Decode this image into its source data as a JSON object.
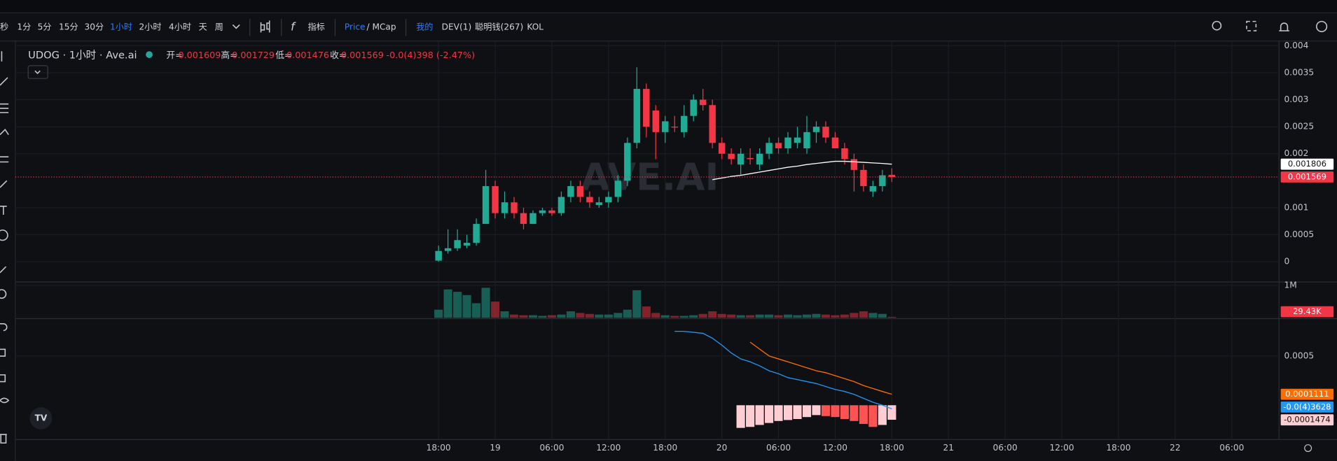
{
  "toolbar": {
    "intervals": [
      "秒",
      "1分",
      "5分",
      "15分",
      "30分",
      "1小时",
      "2小时",
      "4小时",
      "天",
      "周"
    ],
    "indicators": "指标",
    "price": "Price",
    "mcap": "/ MCap",
    "filters": [
      "我的",
      "DEV(1)",
      "聪明钱(267)",
      "KOL"
    ]
  },
  "legend": {
    "title": "UDOG · 1小时 · Ave.ai",
    "open_key": "开=",
    "open": 0.001609,
    "high_key": "高=",
    "high": 0.001729,
    "low_key": "低=",
    "low": 0.001476,
    "close_key": "收=",
    "close": 0.001569,
    "change": "-0.0(4)398 (-2.47%)"
  },
  "watermark": "AVE.AI",
  "chart_data": {
    "type": "candlestick",
    "xlim": [
      -44,
      89
    ],
    "xticks": [
      {
        "value": 0,
        "label": "18:00"
      },
      {
        "value": 6,
        "label": "19"
      },
      {
        "value": 12,
        "label": "06:00"
      },
      {
        "value": 18,
        "label": "12:00"
      },
      {
        "value": 24,
        "label": "18:00"
      },
      {
        "value": 30,
        "label": "20"
      },
      {
        "value": 36,
        "label": "06:00"
      },
      {
        "value": 42,
        "label": "12:00"
      },
      {
        "value": 48,
        "label": "18:00"
      },
      {
        "value": 54,
        "label": "21"
      },
      {
        "value": 60,
        "label": "06:00"
      },
      {
        "value": 66,
        "label": "12:00"
      },
      {
        "value": 72,
        "label": "18:00"
      },
      {
        "value": 78,
        "label": "22"
      },
      {
        "value": 84,
        "label": "06:00"
      }
    ],
    "ylim": [
      -0.00036,
      0.00415
    ],
    "yticks": [
      0,
      0.0005,
      0.001,
      0.002,
      0.0025,
      0.003,
      0.0035,
      0.004
    ],
    "up_color": "#22ab94",
    "down_color": "#f23645",
    "open": [
      2e-05,
      0.0002,
      0.00025,
      0.0003,
      0.00035,
      0.0007,
      0.0014,
      0.0009,
      0.0011,
      0.0009,
      0.0007,
      0.0009,
      0.00095,
      0.0009,
      0.0012,
      0.0014,
      0.0012,
      0.00105,
      0.0011,
      0.0012,
      0.0015,
      0.0022,
      0.0032,
      0.0028,
      0.0024,
      0.0025,
      0.0024,
      0.0027,
      0.003,
      0.0029,
      0.0022,
      0.002,
      0.0018,
      0.00192,
      0.0018,
      0.002,
      0.0022,
      0.0021,
      0.0022,
      0.0021,
      0.0024,
      0.0025,
      0.0023,
      0.0021,
      0.0019,
      0.0017,
      0.0013,
      0.0014,
      0.001609
    ],
    "high": [
      0.0003,
      0.0006,
      0.0006,
      0.0005,
      0.0008,
      0.0017,
      0.0015,
      0.0013,
      0.0012,
      0.001,
      0.00095,
      0.001,
      0.001,
      0.0013,
      0.0015,
      0.0015,
      0.0013,
      0.0012,
      0.0013,
      0.0016,
      0.0023,
      0.0036,
      0.0033,
      0.0029,
      0.0027,
      0.0027,
      0.0029,
      0.0031,
      0.0032,
      0.003,
      0.0023,
      0.0021,
      0.0021,
      0.0021,
      0.0021,
      0.0023,
      0.0023,
      0.0024,
      0.0025,
      0.0027,
      0.0026,
      0.0026,
      0.0024,
      0.0022,
      0.002,
      0.0018,
      0.0015,
      0.0017,
      0.001729
    ],
    "low": [
      0.0,
      0.00015,
      0.0002,
      0.00025,
      0.0003,
      0.0007,
      0.0008,
      0.0008,
      0.0008,
      0.0006,
      0.0007,
      0.00085,
      0.00085,
      0.00085,
      0.0011,
      0.0011,
      0.001,
      0.001,
      0.001,
      0.0011,
      0.0014,
      0.0021,
      0.0023,
      0.0019,
      0.0022,
      0.0024,
      0.0023,
      0.0026,
      0.0028,
      0.0021,
      0.0019,
      0.0018,
      0.0016,
      0.0018,
      0.0017,
      0.0019,
      0.002,
      0.002,
      0.0021,
      0.002,
      0.0022,
      0.0022,
      0.0021,
      0.0018,
      0.0013,
      0.0013,
      0.0012,
      0.0013,
      0.001476
    ],
    "close": [
      0.0002,
      0.00025,
      0.0004,
      0.00035,
      0.0007,
      0.0014,
      0.0009,
      0.0011,
      0.0009,
      0.0007,
      0.0009,
      0.00095,
      0.0009,
      0.0012,
      0.0014,
      0.0012,
      0.0011,
      0.0011,
      0.0012,
      0.0015,
      0.0022,
      0.0032,
      0.0025,
      0.0024,
      0.0026,
      0.00249,
      0.0027,
      0.003,
      0.0029,
      0.0022,
      0.002,
      0.0019,
      0.002,
      0.0019,
      0.002,
      0.0022,
      0.0021,
      0.0023,
      0.0023,
      0.0024,
      0.0025,
      0.0023,
      0.0021,
      0.0019,
      0.0017,
      0.0014,
      0.0014,
      0.0016,
      0.001569
    ],
    "ma": {
      "color": "#ffffff",
      "last_value": 0.001806,
      "values": [
        null,
        null,
        null,
        null,
        null,
        null,
        null,
        null,
        null,
        null,
        null,
        null,
        null,
        null,
        null,
        null,
        null,
        null,
        null,
        null,
        null,
        null,
        null,
        null,
        null,
        null,
        null,
        null,
        null,
        0.00152,
        0.00155,
        0.00158,
        0.0016,
        0.00163,
        0.00166,
        0.00169,
        0.00172,
        0.00175,
        0.00177,
        0.0018,
        0.00182,
        0.00184,
        0.00186,
        0.00186,
        0.00185,
        0.00184,
        0.00183,
        0.00182,
        0.001806
      ]
    },
    "last_price": 0.001569,
    "volume": {
      "ylim": [
        0,
        1050000
      ],
      "yticks": [
        {
          "value": 1000000,
          "label": "1M"
        }
      ],
      "last_label": "29.43K",
      "values": [
        250000,
        875000,
        800000,
        700000,
        450000,
        925000,
        500000,
        200000,
        100000,
        80000,
        80000,
        60000,
        80000,
        100000,
        200000,
        150000,
        120000,
        100000,
        100000,
        150000,
        250000,
        850000,
        350000,
        150000,
        80000,
        60000,
        60000,
        80000,
        120000,
        200000,
        120000,
        100000,
        80000,
        80000,
        100000,
        100000,
        80000,
        100000,
        80000,
        100000,
        120000,
        100000,
        80000,
        100000,
        150000,
        200000,
        150000,
        120000,
        29430
      ]
    },
    "macd": {
      "ylim": [
        -0.00034,
        0.00087
      ],
      "yticks": [
        0.0005
      ],
      "macd_color": "#2196f3",
      "signal_color": "#ff6d00",
      "macd_label": "-0.0(4)3628",
      "signal_label": 0.0001111,
      "hist_label": -0.0001474,
      "macd_values": [
        null,
        null,
        null,
        null,
        null,
        null,
        null,
        null,
        null,
        null,
        null,
        null,
        null,
        null,
        null,
        null,
        null,
        null,
        null,
        null,
        null,
        null,
        null,
        null,
        null,
        0.00075,
        0.00075,
        0.00074,
        0.00073,
        0.00068,
        0.00061,
        0.00053,
        0.00047,
        0.00044,
        0.0004,
        0.00035,
        0.00032,
        0.00028,
        0.00026,
        0.00024,
        0.00022,
        0.00019,
        0.00016,
        0.00014,
        0.00011,
        7e-05,
        3e-05,
        0.0,
        -3.63e-05
      ],
      "signal_values": [
        null,
        null,
        null,
        null,
        null,
        null,
        null,
        null,
        null,
        null,
        null,
        null,
        null,
        null,
        null,
        null,
        null,
        null,
        null,
        null,
        null,
        null,
        null,
        null,
        null,
        null,
        null,
        null,
        null,
        null,
        null,
        null,
        null,
        0.00064,
        0.00057,
        0.0005,
        0.00047,
        0.00044,
        0.00041,
        0.00038,
        0.00035,
        0.00033,
        0.0003,
        0.00027,
        0.00024,
        0.0002,
        0.00017,
        0.00014,
        0.0001111
      ],
      "hist_values": [
        null,
        null,
        null,
        null,
        null,
        null,
        null,
        null,
        null,
        null,
        null,
        null,
        null,
        null,
        null,
        null,
        null,
        null,
        null,
        null,
        null,
        null,
        null,
        null,
        null,
        null,
        null,
        null,
        null,
        null,
        null,
        null,
        -0.00023,
        -0.00022,
        -0.0002,
        -0.00018,
        -0.00016,
        -0.00015,
        -0.00014,
        -0.00012,
        -0.0001,
        -0.00011,
        -0.00012,
        -0.00014,
        -0.00016,
        -0.00019,
        -0.00022,
        -0.0002,
        -0.0001474
      ],
      "hist_colors": [
        "#ffcdd2",
        "#ff5252"
      ]
    }
  }
}
